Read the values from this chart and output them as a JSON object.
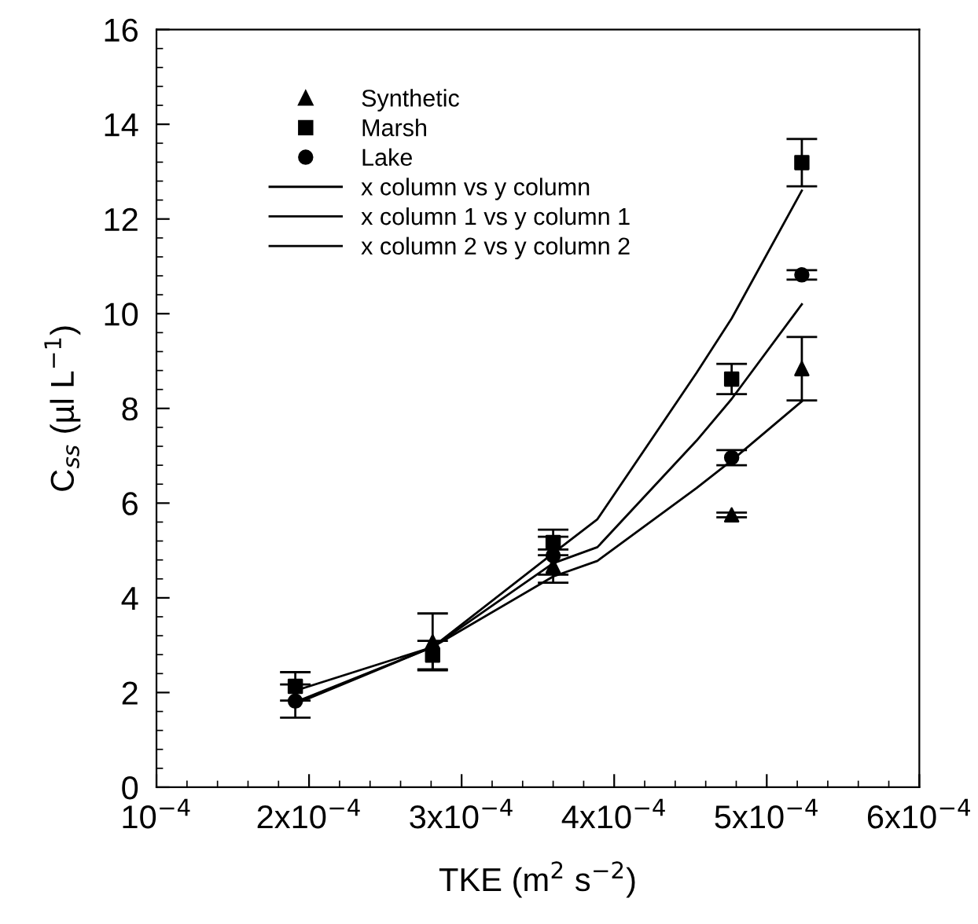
{
  "chart_data": {
    "type": "scatter",
    "xlabel": "TKE (m$^{2}$ s$^{−2}$)",
    "ylabel": "C$_{ss}$ (µl L$^{−1}$)",
    "xlim": [
      0.0001,
      0.0006
    ],
    "xticks": [
      {
        "value": 0.0001,
        "label": "10$^{−4}$"
      },
      {
        "value": 0.0002,
        "label": "2x10$^{−4}$"
      },
      {
        "value": 0.0003,
        "label": "3x10$^{−4}$"
      },
      {
        "value": 0.0004,
        "label": "4x10$^{−4}$"
      },
      {
        "value": 0.0005,
        "label": "5x10$^{−4}$"
      },
      {
        "value": 0.0006,
        "label": "6x10$^{−4}$"
      }
    ],
    "ylim": [
      0,
      16
    ],
    "yticks": [
      0,
      2,
      4,
      6,
      8,
      10,
      12,
      14,
      16
    ],
    "legend": "top left",
    "grid": false,
    "x": [
      0.000191,
      0.000281,
      0.00036,
      0.000477,
      0.000523
    ],
    "series": [
      {
        "name": "Synthetic",
        "marker": "triangle",
        "color": "#000000",
        "values": [
          null,
          3.07,
          4.67,
          5.75,
          8.84
        ],
        "errors": [
          null,
          0.6,
          0.35,
          0.05,
          0.67
        ]
      },
      {
        "name": "Marsh",
        "marker": "square",
        "color": "#000000",
        "values": [
          2.13,
          2.79,
          5.17,
          8.62,
          13.19
        ],
        "errors": [
          0.3,
          0.3,
          0.27,
          0.32,
          0.5
        ]
      },
      {
        "name": "Lake",
        "marker": "circle",
        "color": "#000000",
        "values": [
          1.82,
          null,
          4.89,
          6.96,
          10.82
        ],
        "errors": [
          0.35,
          null,
          0.4,
          0.16,
          0.1
        ]
      },
      {
        "name": "x column vs y column",
        "type": "line",
        "color": "#000000",
        "x": [
          0.000191,
          0.000281,
          0.00036,
          0.000389,
          0.000454,
          0.000477,
          0.000523
        ],
        "values": [
          1.8,
          2.96,
          4.45,
          4.78,
          6.32,
          6.9,
          8.15
        ]
      },
      {
        "name": "x column 1 vs y column 1",
        "type": "line",
        "color": "#000000",
        "x": [
          0.000191,
          0.000281,
          0.00036,
          0.000389,
          0.000454,
          0.000477,
          0.000523
        ],
        "values": [
          2.04,
          2.96,
          4.94,
          5.66,
          8.75,
          9.9,
          12.6
        ]
      },
      {
        "name": "x column 2 vs y column 2",
        "type": "line",
        "color": "#000000",
        "x": [
          0.000191,
          0.000281,
          0.00036,
          0.000389,
          0.000454,
          0.000477,
          0.000523
        ],
        "values": [
          1.76,
          2.96,
          4.73,
          5.07,
          7.32,
          8.2,
          10.2
        ]
      }
    ]
  }
}
